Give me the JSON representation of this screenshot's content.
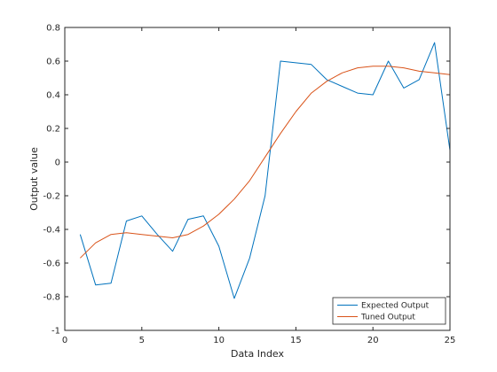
{
  "chart_data": {
    "type": "line",
    "title": "",
    "xlabel": "Data Index",
    "ylabel": "Output value",
    "xlim": [
      0,
      25
    ],
    "ylim": [
      -1,
      0.8
    ],
    "xticks": [
      0,
      5,
      10,
      15,
      20,
      25
    ],
    "xtick_labels": [
      "0",
      "5",
      "10",
      "15",
      "20",
      "25"
    ],
    "yticks": [
      -1,
      -0.8,
      -0.6,
      -0.4,
      -0.2,
      0,
      0.2,
      0.4,
      0.6,
      0.8
    ],
    "ytick_labels": [
      "-1",
      "-0.8",
      "-0.6",
      "-0.4",
      "-0.2",
      "0",
      "0.2",
      "0.4",
      "0.6",
      "0.8"
    ],
    "grid": false,
    "legend_position": "bottom-right",
    "series": [
      {
        "name": "Expected Output",
        "color": "#0072BD",
        "x": [
          1,
          2,
          3,
          4,
          5,
          6,
          7,
          8,
          9,
          10,
          11,
          12,
          13,
          14,
          15,
          16,
          17,
          18,
          19,
          20,
          21,
          22,
          23,
          24,
          25
        ],
        "y": [
          -0.43,
          -0.73,
          -0.72,
          -0.35,
          -0.32,
          -0.43,
          -0.53,
          -0.34,
          -0.32,
          -0.5,
          -0.81,
          -0.57,
          -0.2,
          0.6,
          0.59,
          0.58,
          0.49,
          0.45,
          0.41,
          0.4,
          0.6,
          0.44,
          0.49,
          0.71,
          0.07
        ]
      },
      {
        "name": "Tuned Output",
        "color": "#D95319",
        "x": [
          1,
          2,
          3,
          4,
          5,
          6,
          7,
          8,
          9,
          10,
          11,
          12,
          13,
          14,
          15,
          16,
          17,
          18,
          19,
          20,
          21,
          22,
          23,
          24,
          25
        ],
        "y": [
          -0.57,
          -0.48,
          -0.43,
          -0.42,
          -0.43,
          -0.44,
          -0.45,
          -0.43,
          -0.38,
          -0.31,
          -0.22,
          -0.11,
          0.03,
          0.17,
          0.3,
          0.41,
          0.48,
          0.53,
          0.56,
          0.57,
          0.57,
          0.56,
          0.54,
          0.53,
          0.52
        ]
      }
    ]
  }
}
